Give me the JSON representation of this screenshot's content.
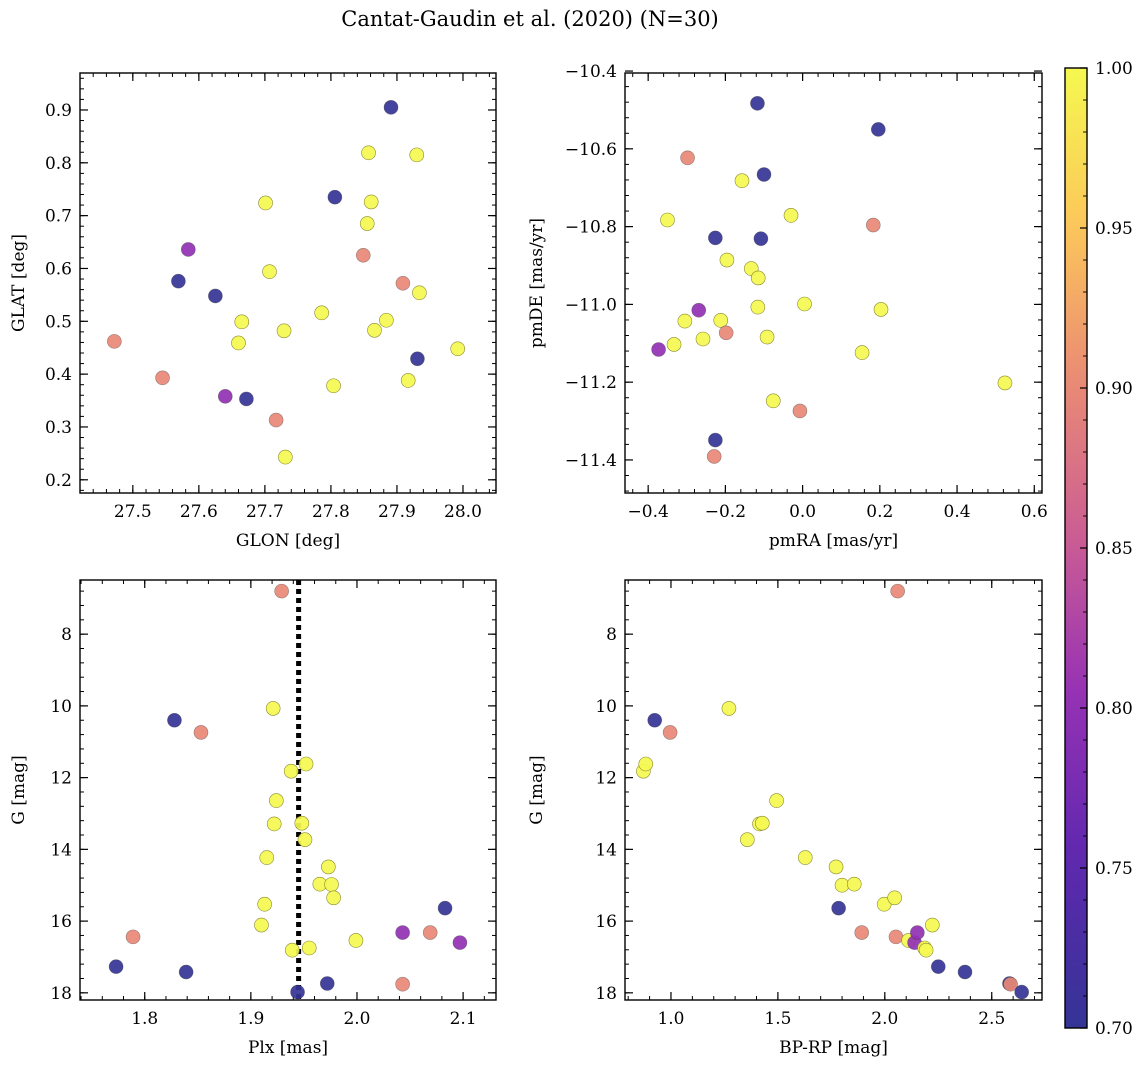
{
  "figure": {
    "title": "Cantat-Gaudin et al. (2020) (N=30)"
  },
  "colorbar": {
    "min": 0.7,
    "max": 1.0,
    "colormap": "plasma",
    "ticks": [
      0.7,
      0.75,
      0.8,
      0.85,
      0.9,
      0.95,
      1.0
    ],
    "tick_labels": [
      "0.70",
      "0.75",
      "0.80",
      "0.85",
      "0.90",
      "0.95",
      "1.00"
    ]
  },
  "chart_data": [
    {
      "type": "scatter",
      "id": "glon-glat",
      "xlabel": "GLON [deg]",
      "ylabel": "GLAT [deg]",
      "xlim": [
        27.42,
        28.05
      ],
      "ylim": [
        0.175,
        0.97
      ],
      "xticks": [
        27.5,
        27.6,
        27.7,
        27.8,
        27.9,
        28.0
      ],
      "xtick_labels": [
        "27.5",
        "27.6",
        "27.7",
        "27.8",
        "27.9",
        "28.0"
      ],
      "yticks": [
        0.2,
        0.3,
        0.4,
        0.5,
        0.6,
        0.7,
        0.8,
        0.9
      ],
      "ytick_labels": [
        "0.2",
        "0.3",
        "0.4",
        "0.5",
        "0.6",
        "0.7",
        "0.8",
        "0.9"
      ],
      "y_inverted": false,
      "points": [
        {
          "x": 27.472,
          "y": 0.462,
          "c": 0.9
        },
        {
          "x": 27.545,
          "y": 0.393,
          "c": 0.9
        },
        {
          "x": 27.569,
          "y": 0.576,
          "c": 0.7
        },
        {
          "x": 27.584,
          "y": 0.636,
          "c": 0.8
        },
        {
          "x": 27.625,
          "y": 0.548,
          "c": 0.7
        },
        {
          "x": 27.64,
          "y": 0.358,
          "c": 0.8
        },
        {
          "x": 27.66,
          "y": 0.459,
          "c": 1.0
        },
        {
          "x": 27.665,
          "y": 0.499,
          "c": 1.0
        },
        {
          "x": 27.672,
          "y": 0.353,
          "c": 0.7
        },
        {
          "x": 27.701,
          "y": 0.724,
          "c": 1.0
        },
        {
          "x": 27.707,
          "y": 0.594,
          "c": 1.0
        },
        {
          "x": 27.717,
          "y": 0.313,
          "c": 0.9
        },
        {
          "x": 27.729,
          "y": 0.482,
          "c": 1.0
        },
        {
          "x": 27.731,
          "y": 0.243,
          "c": 1.0
        },
        {
          "x": 27.786,
          "y": 0.516,
          "c": 1.0
        },
        {
          "x": 27.804,
          "y": 0.378,
          "c": 1.0
        },
        {
          "x": 27.806,
          "y": 0.735,
          "c": 0.7
        },
        {
          "x": 27.849,
          "y": 0.625,
          "c": 0.9
        },
        {
          "x": 27.855,
          "y": 0.685,
          "c": 1.0
        },
        {
          "x": 27.857,
          "y": 0.819,
          "c": 1.0
        },
        {
          "x": 27.861,
          "y": 0.726,
          "c": 1.0
        },
        {
          "x": 27.866,
          "y": 0.483,
          "c": 1.0
        },
        {
          "x": 27.884,
          "y": 0.502,
          "c": 1.0
        },
        {
          "x": 27.891,
          "y": 0.905,
          "c": 0.7
        },
        {
          "x": 27.909,
          "y": 0.572,
          "c": 0.9
        },
        {
          "x": 27.917,
          "y": 0.388,
          "c": 1.0
        },
        {
          "x": 27.93,
          "y": 0.815,
          "c": 1.0
        },
        {
          "x": 27.931,
          "y": 0.429,
          "c": 0.7
        },
        {
          "x": 27.934,
          "y": 0.554,
          "c": 1.0
        },
        {
          "x": 27.992,
          "y": 0.448,
          "c": 1.0
        }
      ]
    },
    {
      "type": "scatter",
      "id": "pmra-pmde",
      "xlabel": "pmRA [mas/yr]",
      "ylabel": "pmDE [mas/yr]",
      "xlim": [
        -0.46,
        0.62
      ],
      "ylim": [
        -11.485,
        -10.405
      ],
      "xticks": [
        -0.4,
        -0.2,
        0.0,
        0.2,
        0.4,
        0.6
      ],
      "xtick_labels": [
        "−0.4",
        "−0.2",
        "0.0",
        "0.2",
        "0.4",
        "0.6"
      ],
      "yticks": [
        -11.4,
        -11.2,
        -11.0,
        -10.8,
        -10.6,
        -10.4
      ],
      "ytick_labels": [
        "−11.4",
        "−11.2",
        "−11.0",
        "−10.8",
        "−10.6",
        "−10.4"
      ],
      "y_inverted": false,
      "points": [
        {
          "x": -0.373,
          "y": -11.116,
          "c": 0.8
        },
        {
          "x": -0.35,
          "y": -10.783,
          "c": 1.0
        },
        {
          "x": -0.333,
          "y": -11.103,
          "c": 1.0
        },
        {
          "x": -0.305,
          "y": -11.043,
          "c": 1.0
        },
        {
          "x": -0.298,
          "y": -10.623,
          "c": 0.9
        },
        {
          "x": -0.269,
          "y": -11.015,
          "c": 0.8
        },
        {
          "x": -0.258,
          "y": -11.089,
          "c": 1.0
        },
        {
          "x": -0.229,
          "y": -11.391,
          "c": 0.9
        },
        {
          "x": -0.226,
          "y": -10.829,
          "c": 0.7
        },
        {
          "x": -0.226,
          "y": -11.349,
          "c": 0.7
        },
        {
          "x": -0.212,
          "y": -11.041,
          "c": 1.0
        },
        {
          "x": -0.198,
          "y": -11.073,
          "c": 0.9
        },
        {
          "x": -0.196,
          "y": -10.886,
          "c": 1.0
        },
        {
          "x": -0.157,
          "y": -10.682,
          "c": 1.0
        },
        {
          "x": -0.133,
          "y": -10.908,
          "c": 1.0
        },
        {
          "x": -0.117,
          "y": -10.483,
          "c": 0.7
        },
        {
          "x": -0.116,
          "y": -11.007,
          "c": 1.0
        },
        {
          "x": -0.115,
          "y": -10.932,
          "c": 1.0
        },
        {
          "x": -0.108,
          "y": -10.831,
          "c": 0.7
        },
        {
          "x": -0.1,
          "y": -10.666,
          "c": 0.7
        },
        {
          "x": -0.092,
          "y": -11.084,
          "c": 1.0
        },
        {
          "x": -0.076,
          "y": -11.248,
          "c": 1.0
        },
        {
          "x": -0.03,
          "y": -10.771,
          "c": 1.0
        },
        {
          "x": -0.007,
          "y": -11.274,
          "c": 0.9
        },
        {
          "x": 0.005,
          "y": -10.999,
          "c": 1.0
        },
        {
          "x": 0.154,
          "y": -11.124,
          "c": 1.0
        },
        {
          "x": 0.183,
          "y": -10.796,
          "c": 0.9
        },
        {
          "x": 0.196,
          "y": -10.55,
          "c": 0.7
        },
        {
          "x": 0.203,
          "y": -11.013,
          "c": 1.0
        },
        {
          "x": 0.524,
          "y": -11.202,
          "c": 1.0
        }
      ]
    },
    {
      "type": "scatter",
      "id": "plx-g",
      "xlabel": "Plx [mas]",
      "ylabel": "G [mag]",
      "xlim": [
        1.739,
        2.131
      ],
      "ylim": [
        18.2,
        6.49
      ],
      "xticks": [
        1.8,
        1.9,
        2.0,
        2.1
      ],
      "xtick_labels": [
        "1.8",
        "1.9",
        "2.0",
        "2.1"
      ],
      "yticks": [
        8,
        10,
        12,
        14,
        16,
        18
      ],
      "ytick_labels": [
        "8",
        "10",
        "12",
        "14",
        "16",
        "18"
      ],
      "y_inverted": true,
      "vline": {
        "x": 1.945,
        "style": "dotted"
      },
      "points": [
        {
          "x": 1.773,
          "y": 17.27,
          "c": 0.7
        },
        {
          "x": 1.789,
          "y": 16.44,
          "c": 0.9
        },
        {
          "x": 1.828,
          "y": 10.4,
          "c": 0.7
        },
        {
          "x": 1.839,
          "y": 17.42,
          "c": 0.7
        },
        {
          "x": 1.853,
          "y": 10.74,
          "c": 0.9
        },
        {
          "x": 1.91,
          "y": 16.11,
          "c": 1.0
        },
        {
          "x": 1.913,
          "y": 15.53,
          "c": 1.0
        },
        {
          "x": 1.915,
          "y": 14.23,
          "c": 1.0
        },
        {
          "x": 1.921,
          "y": 10.07,
          "c": 1.0
        },
        {
          "x": 1.922,
          "y": 13.29,
          "c": 1.0
        },
        {
          "x": 1.924,
          "y": 12.64,
          "c": 1.0
        },
        {
          "x": 1.929,
          "y": 6.8,
          "c": 0.9
        },
        {
          "x": 1.938,
          "y": 11.82,
          "c": 1.0
        },
        {
          "x": 1.939,
          "y": 16.81,
          "c": 1.0
        },
        {
          "x": 1.944,
          "y": 17.98,
          "c": 0.7
        },
        {
          "x": 1.948,
          "y": 13.27,
          "c": 1.0
        },
        {
          "x": 1.951,
          "y": 13.73,
          "c": 1.0
        },
        {
          "x": 1.952,
          "y": 11.62,
          "c": 1.0
        },
        {
          "x": 1.955,
          "y": 16.75,
          "c": 1.0
        },
        {
          "x": 1.965,
          "y": 14.97,
          "c": 1.0
        },
        {
          "x": 1.972,
          "y": 17.74,
          "c": 0.7
        },
        {
          "x": 1.973,
          "y": 14.49,
          "c": 1.0
        },
        {
          "x": 1.976,
          "y": 14.98,
          "c": 1.0
        },
        {
          "x": 1.978,
          "y": 15.35,
          "c": 1.0
        },
        {
          "x": 1.999,
          "y": 16.54,
          "c": 1.0
        },
        {
          "x": 2.043,
          "y": 16.32,
          "c": 0.8
        },
        {
          "x": 2.043,
          "y": 17.76,
          "c": 0.9
        },
        {
          "x": 2.069,
          "y": 16.32,
          "c": 0.9
        },
        {
          "x": 2.083,
          "y": 15.64,
          "c": 0.7
        },
        {
          "x": 2.097,
          "y": 16.6,
          "c": 0.8
        }
      ]
    },
    {
      "type": "scatter",
      "id": "bprp-g",
      "xlabel": "BP-RP [mag]",
      "ylabel": "G [mag]",
      "xlim": [
        0.785,
        2.735
      ],
      "ylim": [
        18.2,
        6.49
      ],
      "xticks": [
        1.0,
        1.5,
        2.0,
        2.5
      ],
      "xtick_labels": [
        "1.0",
        "1.5",
        "2.0",
        "2.5"
      ],
      "yticks": [
        8,
        10,
        12,
        14,
        16,
        18
      ],
      "ytick_labels": [
        "8",
        "10",
        "12",
        "14",
        "16",
        "18"
      ],
      "y_inverted": true,
      "points": [
        {
          "x": 0.871,
          "y": 11.82,
          "c": 1.0
        },
        {
          "x": 0.882,
          "y": 11.62,
          "c": 1.0
        },
        {
          "x": 0.924,
          "y": 10.4,
          "c": 0.7
        },
        {
          "x": 0.996,
          "y": 10.74,
          "c": 0.9
        },
        {
          "x": 1.271,
          "y": 10.07,
          "c": 1.0
        },
        {
          "x": 1.357,
          "y": 13.73,
          "c": 1.0
        },
        {
          "x": 1.414,
          "y": 13.29,
          "c": 1.0
        },
        {
          "x": 1.427,
          "y": 13.27,
          "c": 1.0
        },
        {
          "x": 1.494,
          "y": 12.64,
          "c": 1.0
        },
        {
          "x": 1.628,
          "y": 14.23,
          "c": 1.0
        },
        {
          "x": 1.772,
          "y": 14.49,
          "c": 1.0
        },
        {
          "x": 1.784,
          "y": 15.64,
          "c": 0.7
        },
        {
          "x": 1.8,
          "y": 15.0,
          "c": 1.0
        },
        {
          "x": 1.857,
          "y": 14.97,
          "c": 1.0
        },
        {
          "x": 1.892,
          "y": 16.32,
          "c": 0.9
        },
        {
          "x": 1.997,
          "y": 15.53,
          "c": 1.0
        },
        {
          "x": 2.046,
          "y": 15.35,
          "c": 1.0
        },
        {
          "x": 2.052,
          "y": 16.44,
          "c": 0.9
        },
        {
          "x": 2.06,
          "y": 6.8,
          "c": 0.9
        },
        {
          "x": 2.111,
          "y": 16.54,
          "c": 1.0
        },
        {
          "x": 2.139,
          "y": 16.6,
          "c": 0.8
        },
        {
          "x": 2.152,
          "y": 16.32,
          "c": 0.8
        },
        {
          "x": 2.186,
          "y": 16.75,
          "c": 1.0
        },
        {
          "x": 2.193,
          "y": 16.81,
          "c": 1.0
        },
        {
          "x": 2.222,
          "y": 16.11,
          "c": 1.0
        },
        {
          "x": 2.25,
          "y": 17.27,
          "c": 0.7
        },
        {
          "x": 2.375,
          "y": 17.42,
          "c": 0.7
        },
        {
          "x": 2.583,
          "y": 17.74,
          "c": 0.7
        },
        {
          "x": 2.588,
          "y": 17.76,
          "c": 0.9
        },
        {
          "x": 2.64,
          "y": 17.98,
          "c": 0.7
        }
      ]
    }
  ]
}
